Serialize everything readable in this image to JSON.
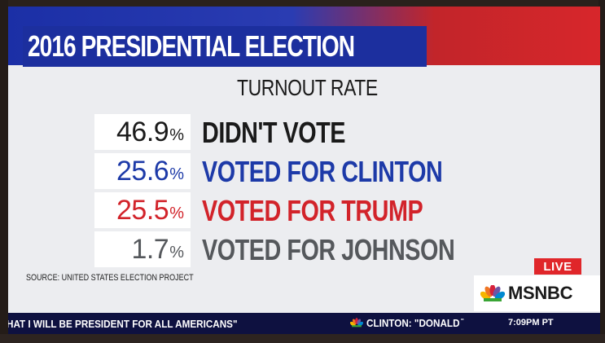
{
  "header": {
    "title": "2016 PRESIDENTIAL ELECTION"
  },
  "subtitle": "TURNOUT RATE",
  "rows": [
    {
      "pct": "46.9",
      "sym": "%",
      "label": "DIDN'T VOTE",
      "color": "#1a1a1a"
    },
    {
      "pct": "25.6",
      "sym": "%",
      "label": "VOTED FOR CLINTON",
      "color": "#1d3aa8"
    },
    {
      "pct": "25.5",
      "sym": "%",
      "label": "VOTED FOR TRUMP",
      "color": "#d2232a"
    },
    {
      "pct": "1.7",
      "sym": "%",
      "label": "VOTED FOR JOHNSON",
      "color": "#55585c"
    }
  ],
  "source": "SOURCE: UNITED STATES ELECTION PROJECT",
  "live": "LIVE",
  "network": "MSNBC",
  "ticker": {
    "left": "HAT I WILL BE PRESIDENT FOR ALL AMERICANS\"",
    "right": "CLINTON: \"DONALD ̄",
    "time": "7:09PM PT"
  },
  "colors": {
    "clinton_blue": "#1d3aa8",
    "trump_red": "#d2232a",
    "johnson_gray": "#55585c",
    "header_blue": "#1c2f9e"
  }
}
